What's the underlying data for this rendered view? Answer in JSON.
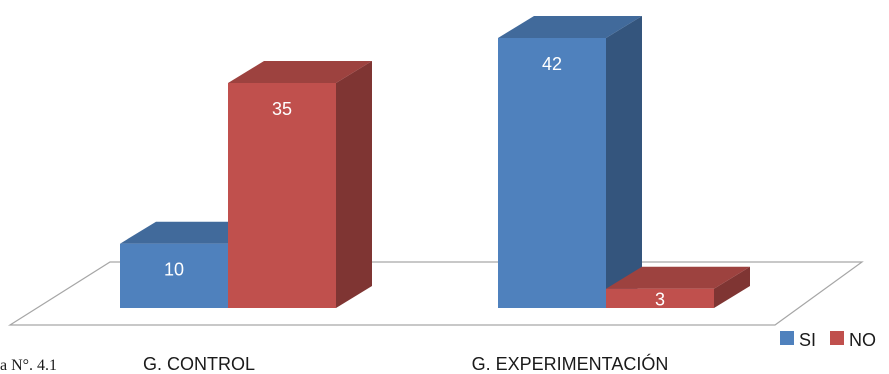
{
  "chart_data": {
    "type": "bar",
    "title": "",
    "categories": [
      "G. CONTROL",
      "G. EXPERIMENTACIÓN"
    ],
    "series": [
      {
        "name": "SI",
        "values": [
          10,
          42
        ],
        "color": "#4f81bd"
      },
      {
        "name": "NO",
        "values": [
          35,
          3
        ],
        "color": "#c0504d"
      }
    ],
    "ylim": [
      0,
      42
    ],
    "grid": false,
    "legend_position": "bottom-right",
    "style": "3d-clustered-column"
  },
  "caption_fragment": "a N°. 4.1"
}
